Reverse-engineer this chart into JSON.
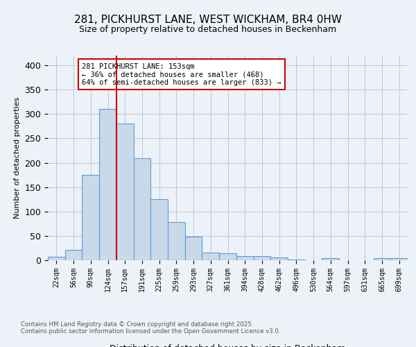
{
  "title1": "281, PICKHURST LANE, WEST WICKHAM, BR4 0HW",
  "title2": "Size of property relative to detached houses in Beckenham",
  "xlabel": "Distribution of detached houses by size in Beckenham",
  "ylabel": "Number of detached properties",
  "bin_labels": [
    "22sqm",
    "56sqm",
    "90sqm",
    "124sqm",
    "157sqm",
    "191sqm",
    "225sqm",
    "259sqm",
    "293sqm",
    "327sqm",
    "361sqm",
    "394sqm",
    "428sqm",
    "462sqm",
    "496sqm",
    "530sqm",
    "564sqm",
    "597sqm",
    "631sqm",
    "665sqm",
    "699sqm"
  ],
  "bar_values": [
    7,
    22,
    175,
    310,
    280,
    210,
    125,
    78,
    49,
    16,
    14,
    9,
    8,
    5,
    2,
    0,
    4,
    0,
    0,
    4,
    4
  ],
  "bar_color": "#c9d9ea",
  "bar_edge_color": "#5b9bd5",
  "vline_x": 3.5,
  "vline_color": "#cc0000",
  "annotation_text": "281 PICKHURST LANE: 153sqm\n← 36% of detached houses are smaller (468)\n64% of semi-detached houses are larger (833) →",
  "annotation_box_color": "#ffffff",
  "annotation_box_edge": "#cc0000",
  "footer1": "Contains HM Land Registry data © Crown copyright and database right 2025.",
  "footer2": "Contains public sector information licensed under the Open Government Licence v3.0.",
  "background_color": "#edf2f9",
  "ylim": [
    0,
    420
  ],
  "yticks": [
    0,
    50,
    100,
    150,
    200,
    250,
    300,
    350,
    400
  ]
}
